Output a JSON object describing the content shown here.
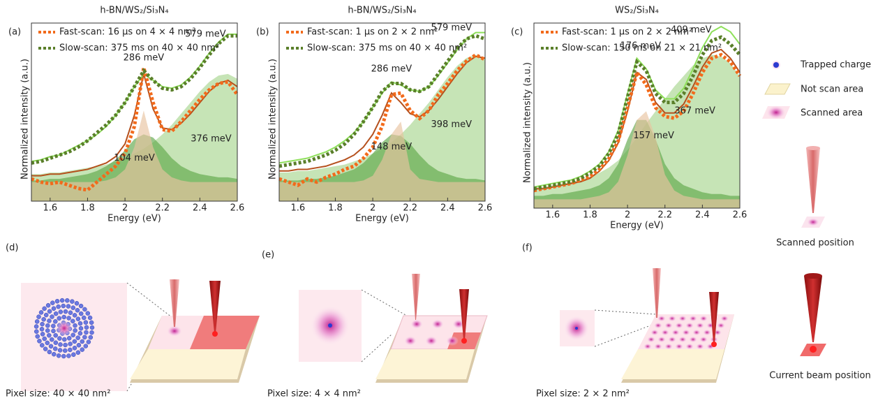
{
  "chart_data": [
    {
      "type": "line",
      "panel": "(a)",
      "title": "h-BN/WS₂/Si₃N₄",
      "title_color": "#9a6a3c",
      "xlabel": "Energy (eV)",
      "ylabel": "Normalized intensity (a.u.)",
      "xlim": [
        1.5,
        2.6
      ],
      "ylim": [
        -0.12,
        1.0
      ],
      "xticks": [
        1.6,
        1.8,
        2.0,
        2.2,
        2.4,
        2.6
      ],
      "x": [
        1.5,
        1.55,
        1.6,
        1.65,
        1.7,
        1.75,
        1.8,
        1.85,
        1.9,
        1.95,
        2.0,
        2.05,
        2.1,
        2.15,
        2.2,
        2.25,
        2.3,
        2.35,
        2.4,
        2.45,
        2.5,
        2.55,
        2.6
      ],
      "series": [
        {
          "name": "Fast-scan: 16 µs on 4 × 4 nm²",
          "color": "#f26a1b",
          "values": [
            0.02,
            0.0,
            -0.01,
            0.0,
            -0.02,
            -0.04,
            -0.05,
            0.0,
            0.05,
            0.1,
            0.18,
            0.35,
            0.72,
            0.5,
            0.33,
            0.32,
            0.38,
            0.45,
            0.52,
            0.58,
            0.62,
            0.63,
            0.55
          ]
        },
        {
          "name": "Slow-scan: 375 ms on 40 × 40 nm²",
          "color": "#5a7f2a",
          "values": [
            0.12,
            0.13,
            0.15,
            0.17,
            0.19,
            0.22,
            0.26,
            0.31,
            0.36,
            0.42,
            0.5,
            0.6,
            0.7,
            0.64,
            0.59,
            0.58,
            0.6,
            0.65,
            0.72,
            0.8,
            0.87,
            0.92,
            0.92
          ]
        }
      ],
      "fits": [
        {
          "color": "#b5501d",
          "values": [
            0.04,
            0.04,
            0.05,
            0.05,
            0.06,
            0.07,
            0.08,
            0.1,
            0.12,
            0.16,
            0.24,
            0.42,
            0.68,
            0.46,
            0.34,
            0.33,
            0.37,
            0.43,
            0.5,
            0.57,
            0.62,
            0.64,
            0.6
          ]
        },
        {
          "color": "#8ee05a",
          "values": [
            0.13,
            0.14,
            0.16,
            0.17,
            0.2,
            0.23,
            0.26,
            0.3,
            0.35,
            0.42,
            0.5,
            0.6,
            0.68,
            0.64,
            0.6,
            0.59,
            0.61,
            0.66,
            0.73,
            0.81,
            0.88,
            0.93,
            0.93
          ]
        }
      ],
      "components": [
        {
          "color": "#a8d68f",
          "values": [
            0.05,
            0.05,
            0.06,
            0.06,
            0.07,
            0.08,
            0.09,
            0.1,
            0.11,
            0.13,
            0.15,
            0.18,
            0.21,
            0.25,
            0.3,
            0.36,
            0.43,
            0.5,
            0.57,
            0.63,
            0.67,
            0.68,
            0.65
          ]
        },
        {
          "color": "#5fa84a",
          "values": [
            0.01,
            0.01,
            0.02,
            0.02,
            0.03,
            0.04,
            0.05,
            0.07,
            0.1,
            0.14,
            0.2,
            0.27,
            0.3,
            0.28,
            0.22,
            0.15,
            0.1,
            0.07,
            0.05,
            0.04,
            0.03,
            0.03,
            0.02
          ]
        },
        {
          "color": "#e8c3a0",
          "values": [
            0,
            0,
            0,
            0,
            0,
            0,
            0,
            0,
            0.01,
            0.03,
            0.08,
            0.22,
            0.45,
            0.22,
            0.08,
            0.03,
            0.01,
            0,
            0,
            0,
            0,
            0,
            0
          ]
        }
      ],
      "annotations": [
        {
          "text": "286 meV",
          "x": 2.1,
          "y": 0.78,
          "color": "#2e7d1a"
        },
        {
          "text": "579 meV",
          "x": 2.43,
          "y": 0.93,
          "color": "#2e7d1a"
        },
        {
          "text": "104 meV",
          "x": 2.05,
          "y": 0.15,
          "color": "#b5411d"
        },
        {
          "text": "376 meV",
          "x": 2.46,
          "y": 0.27,
          "color": "#b5411d"
        }
      ]
    },
    {
      "type": "line",
      "panel": "(b)",
      "title": "h-BN/WS₂/Si₃N₄",
      "title_color": "#9a6a3c",
      "xlabel": "Energy (eV)",
      "ylabel": "Normalized intensity (a.u.)",
      "xlim": [
        1.5,
        2.6
      ],
      "ylim": [
        -0.12,
        1.0
      ],
      "xticks": [
        1.6,
        1.8,
        2.0,
        2.2,
        2.4,
        2.6
      ],
      "x": [
        1.5,
        1.55,
        1.6,
        1.65,
        1.7,
        1.75,
        1.8,
        1.85,
        1.9,
        1.95,
        2.0,
        2.05,
        2.1,
        2.15,
        2.2,
        2.25,
        2.3,
        2.35,
        2.4,
        2.45,
        2.5,
        2.55,
        2.6
      ],
      "series": [
        {
          "name": "Fast-scan: 1 µs on 2 × 2 nm²",
          "color": "#f26a1b",
          "values": [
            0.02,
            0.0,
            -0.02,
            0.02,
            0.0,
            0.03,
            0.05,
            0.08,
            0.1,
            0.15,
            0.22,
            0.35,
            0.55,
            0.56,
            0.45,
            0.4,
            0.45,
            0.55,
            0.62,
            0.7,
            0.76,
            0.8,
            0.77
          ]
        },
        {
          "name": "Slow-scan: 375 ms on 40 × 40 nm²",
          "color": "#5a7f2a",
          "values": [
            0.1,
            0.11,
            0.12,
            0.13,
            0.15,
            0.17,
            0.2,
            0.24,
            0.3,
            0.38,
            0.47,
            0.57,
            0.62,
            0.62,
            0.58,
            0.57,
            0.6,
            0.68,
            0.76,
            0.84,
            0.9,
            0.92,
            0.9
          ]
        }
      ],
      "fits": [
        {
          "color": "#b5501d",
          "values": [
            0.07,
            0.07,
            0.08,
            0.08,
            0.09,
            0.1,
            0.12,
            0.14,
            0.17,
            0.22,
            0.3,
            0.42,
            0.56,
            0.5,
            0.43,
            0.41,
            0.45,
            0.52,
            0.6,
            0.68,
            0.75,
            0.79,
            0.78
          ]
        },
        {
          "color": "#8ee05a",
          "values": [
            0.12,
            0.13,
            0.14,
            0.15,
            0.17,
            0.19,
            0.22,
            0.26,
            0.31,
            0.38,
            0.47,
            0.56,
            0.63,
            0.61,
            0.58,
            0.57,
            0.6,
            0.67,
            0.75,
            0.83,
            0.9,
            0.94,
            0.94
          ]
        }
      ],
      "components": [
        {
          "color": "#a8d68f",
          "values": [
            0.06,
            0.06,
            0.07,
            0.07,
            0.08,
            0.09,
            0.1,
            0.11,
            0.13,
            0.15,
            0.18,
            0.21,
            0.25,
            0.3,
            0.36,
            0.43,
            0.5,
            0.58,
            0.66,
            0.73,
            0.78,
            0.8,
            0.78
          ]
        },
        {
          "color": "#5fa84a",
          "values": [
            0.01,
            0.01,
            0.01,
            0.02,
            0.02,
            0.03,
            0.04,
            0.06,
            0.08,
            0.12,
            0.18,
            0.25,
            0.3,
            0.29,
            0.24,
            0.17,
            0.11,
            0.07,
            0.05,
            0.03,
            0.02,
            0.02,
            0.01
          ]
        },
        {
          "color": "#e8c3a0",
          "values": [
            0,
            0,
            0,
            0,
            0,
            0,
            0,
            0,
            0,
            0.01,
            0.04,
            0.14,
            0.3,
            0.38,
            0.08,
            0.02,
            0.01,
            0,
            0,
            0,
            0,
            0,
            0
          ]
        }
      ],
      "annotations": [
        {
          "text": "286 meV",
          "x": 2.1,
          "y": 0.71,
          "color": "#2e7d1a"
        },
        {
          "text": "579 meV",
          "x": 2.42,
          "y": 0.97,
          "color": "#2e7d1a"
        },
        {
          "text": "148 meV",
          "x": 2.1,
          "y": 0.22,
          "color": "#b5411d"
        },
        {
          "text": "398 meV",
          "x": 2.42,
          "y": 0.36,
          "color": "#b5411d"
        }
      ]
    },
    {
      "type": "line",
      "panel": "(c)",
      "title": "WS₂/Si₃N₄",
      "title_color": "#1f4fa0",
      "xlabel": "Energy (eV)",
      "ylabel": "Normalized intensity (a.u.)",
      "xlim": [
        1.5,
        2.6
      ],
      "ylim": [
        -0.05,
        1.0
      ],
      "xticks": [
        1.6,
        1.8,
        2.0,
        2.2,
        2.4,
        2.6
      ],
      "x": [
        1.5,
        1.55,
        1.6,
        1.65,
        1.7,
        1.75,
        1.8,
        1.85,
        1.9,
        1.95,
        2.0,
        2.05,
        2.1,
        2.15,
        2.2,
        2.25,
        2.3,
        2.35,
        2.4,
        2.45,
        2.5,
        2.55,
        2.6
      ],
      "series": [
        {
          "name": "Fast-scan: 1 µs on 2 × 2 nm²",
          "color": "#f26a1b",
          "values": [
            0.05,
            0.06,
            0.07,
            0.08,
            0.09,
            0.11,
            0.13,
            0.17,
            0.23,
            0.33,
            0.52,
            0.72,
            0.65,
            0.52,
            0.47,
            0.46,
            0.5,
            0.6,
            0.72,
            0.8,
            0.82,
            0.78,
            0.7
          ]
        },
        {
          "name": "Slow-scan: 150 ms on 21 × 21 nm²",
          "color": "#5a7f2a",
          "values": [
            0.06,
            0.07,
            0.08,
            0.09,
            0.1,
            0.12,
            0.15,
            0.19,
            0.26,
            0.37,
            0.58,
            0.78,
            0.73,
            0.6,
            0.55,
            0.55,
            0.6,
            0.7,
            0.82,
            0.9,
            0.92,
            0.88,
            0.82
          ]
        }
      ],
      "fits": [
        {
          "color": "#b5501d",
          "values": [
            0.06,
            0.06,
            0.07,
            0.08,
            0.09,
            0.1,
            0.12,
            0.16,
            0.22,
            0.32,
            0.5,
            0.72,
            0.68,
            0.55,
            0.49,
            0.49,
            0.54,
            0.64,
            0.75,
            0.83,
            0.85,
            0.8,
            0.72
          ]
        },
        {
          "color": "#8ee05a",
          "values": [
            0.07,
            0.08,
            0.09,
            0.1,
            0.11,
            0.13,
            0.16,
            0.2,
            0.27,
            0.39,
            0.6,
            0.8,
            0.74,
            0.62,
            0.57,
            0.57,
            0.63,
            0.74,
            0.86,
            0.95,
            0.98,
            0.95,
            0.88
          ]
        }
      ],
      "components": [
        {
          "color": "#a8d68f",
          "values": [
            0.07,
            0.07,
            0.08,
            0.09,
            0.1,
            0.11,
            0.13,
            0.15,
            0.18,
            0.22,
            0.28,
            0.35,
            0.43,
            0.5,
            0.57,
            0.64,
            0.7,
            0.76,
            0.8,
            0.82,
            0.81,
            0.77,
            0.7
          ]
        },
        {
          "color": "#5fa84a",
          "values": [
            0.02,
            0.02,
            0.03,
            0.03,
            0.04,
            0.05,
            0.06,
            0.08,
            0.12,
            0.2,
            0.34,
            0.45,
            0.45,
            0.34,
            0.2,
            0.12,
            0.08,
            0.06,
            0.04,
            0.03,
            0.03,
            0.02,
            0.02
          ]
        },
        {
          "color": "#e8c3a0",
          "values": [
            0,
            0,
            0,
            0,
            0,
            0,
            0.01,
            0.02,
            0.04,
            0.1,
            0.25,
            0.45,
            0.5,
            0.35,
            0.14,
            0.05,
            0.02,
            0.01,
            0,
            0,
            0,
            0,
            0
          ]
        }
      ],
      "annotations": [
        {
          "text": "176 meV",
          "x": 2.07,
          "y": 0.87,
          "color": "#2e7d1a"
        },
        {
          "text": "409 meV",
          "x": 2.34,
          "y": 0.96,
          "color": "#2e7d1a"
        },
        {
          "text": "157 meV",
          "x": 2.14,
          "y": 0.36,
          "color": "#b5411d"
        },
        {
          "text": "367 meV",
          "x": 2.36,
          "y": 0.5,
          "color": "#b5411d"
        }
      ]
    }
  ],
  "diagram": {
    "legend": [
      "Trapped charge",
      "Not scan area",
      "Scanned area"
    ],
    "scanned_position": "Scanned position",
    "current_position": "Current beam position",
    "panels": [
      {
        "label": "(d)",
        "pixel_size": "Pixel size: 40 × 40 nm²"
      },
      {
        "label": "(e)",
        "pixel_size": "Pixel size: 4 × 4 nm²"
      },
      {
        "label": "(f)",
        "pixel_size": "Pixel size: 2 × 2 nm²"
      }
    ]
  }
}
